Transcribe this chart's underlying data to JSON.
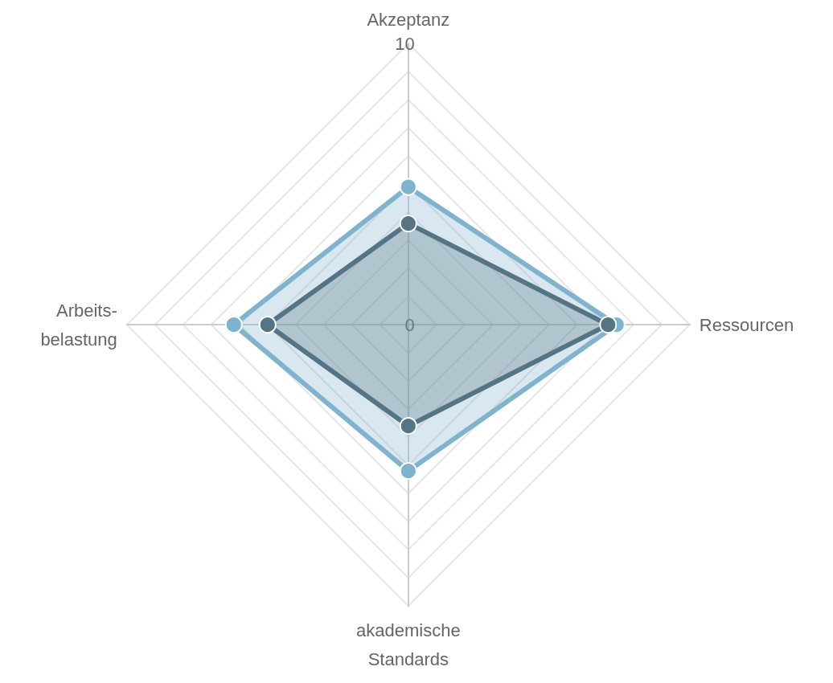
{
  "chart_data": {
    "type": "radar",
    "categories": [
      "Akzeptanz",
      "Ressourcen",
      "akademische\nStandards",
      "Arbeits-\nbelastung"
    ],
    "ylim": [
      0,
      10
    ],
    "yticks": [
      0,
      10
    ],
    "marker": "circle",
    "series": [
      {
        "color": "#80b3cd",
        "values": [
          4.9,
          7.4,
          5.2,
          6.2
        ]
      },
      {
        "color": "#557486",
        "values": [
          3.6,
          7.1,
          3.6,
          5.0
        ]
      }
    ]
  }
}
